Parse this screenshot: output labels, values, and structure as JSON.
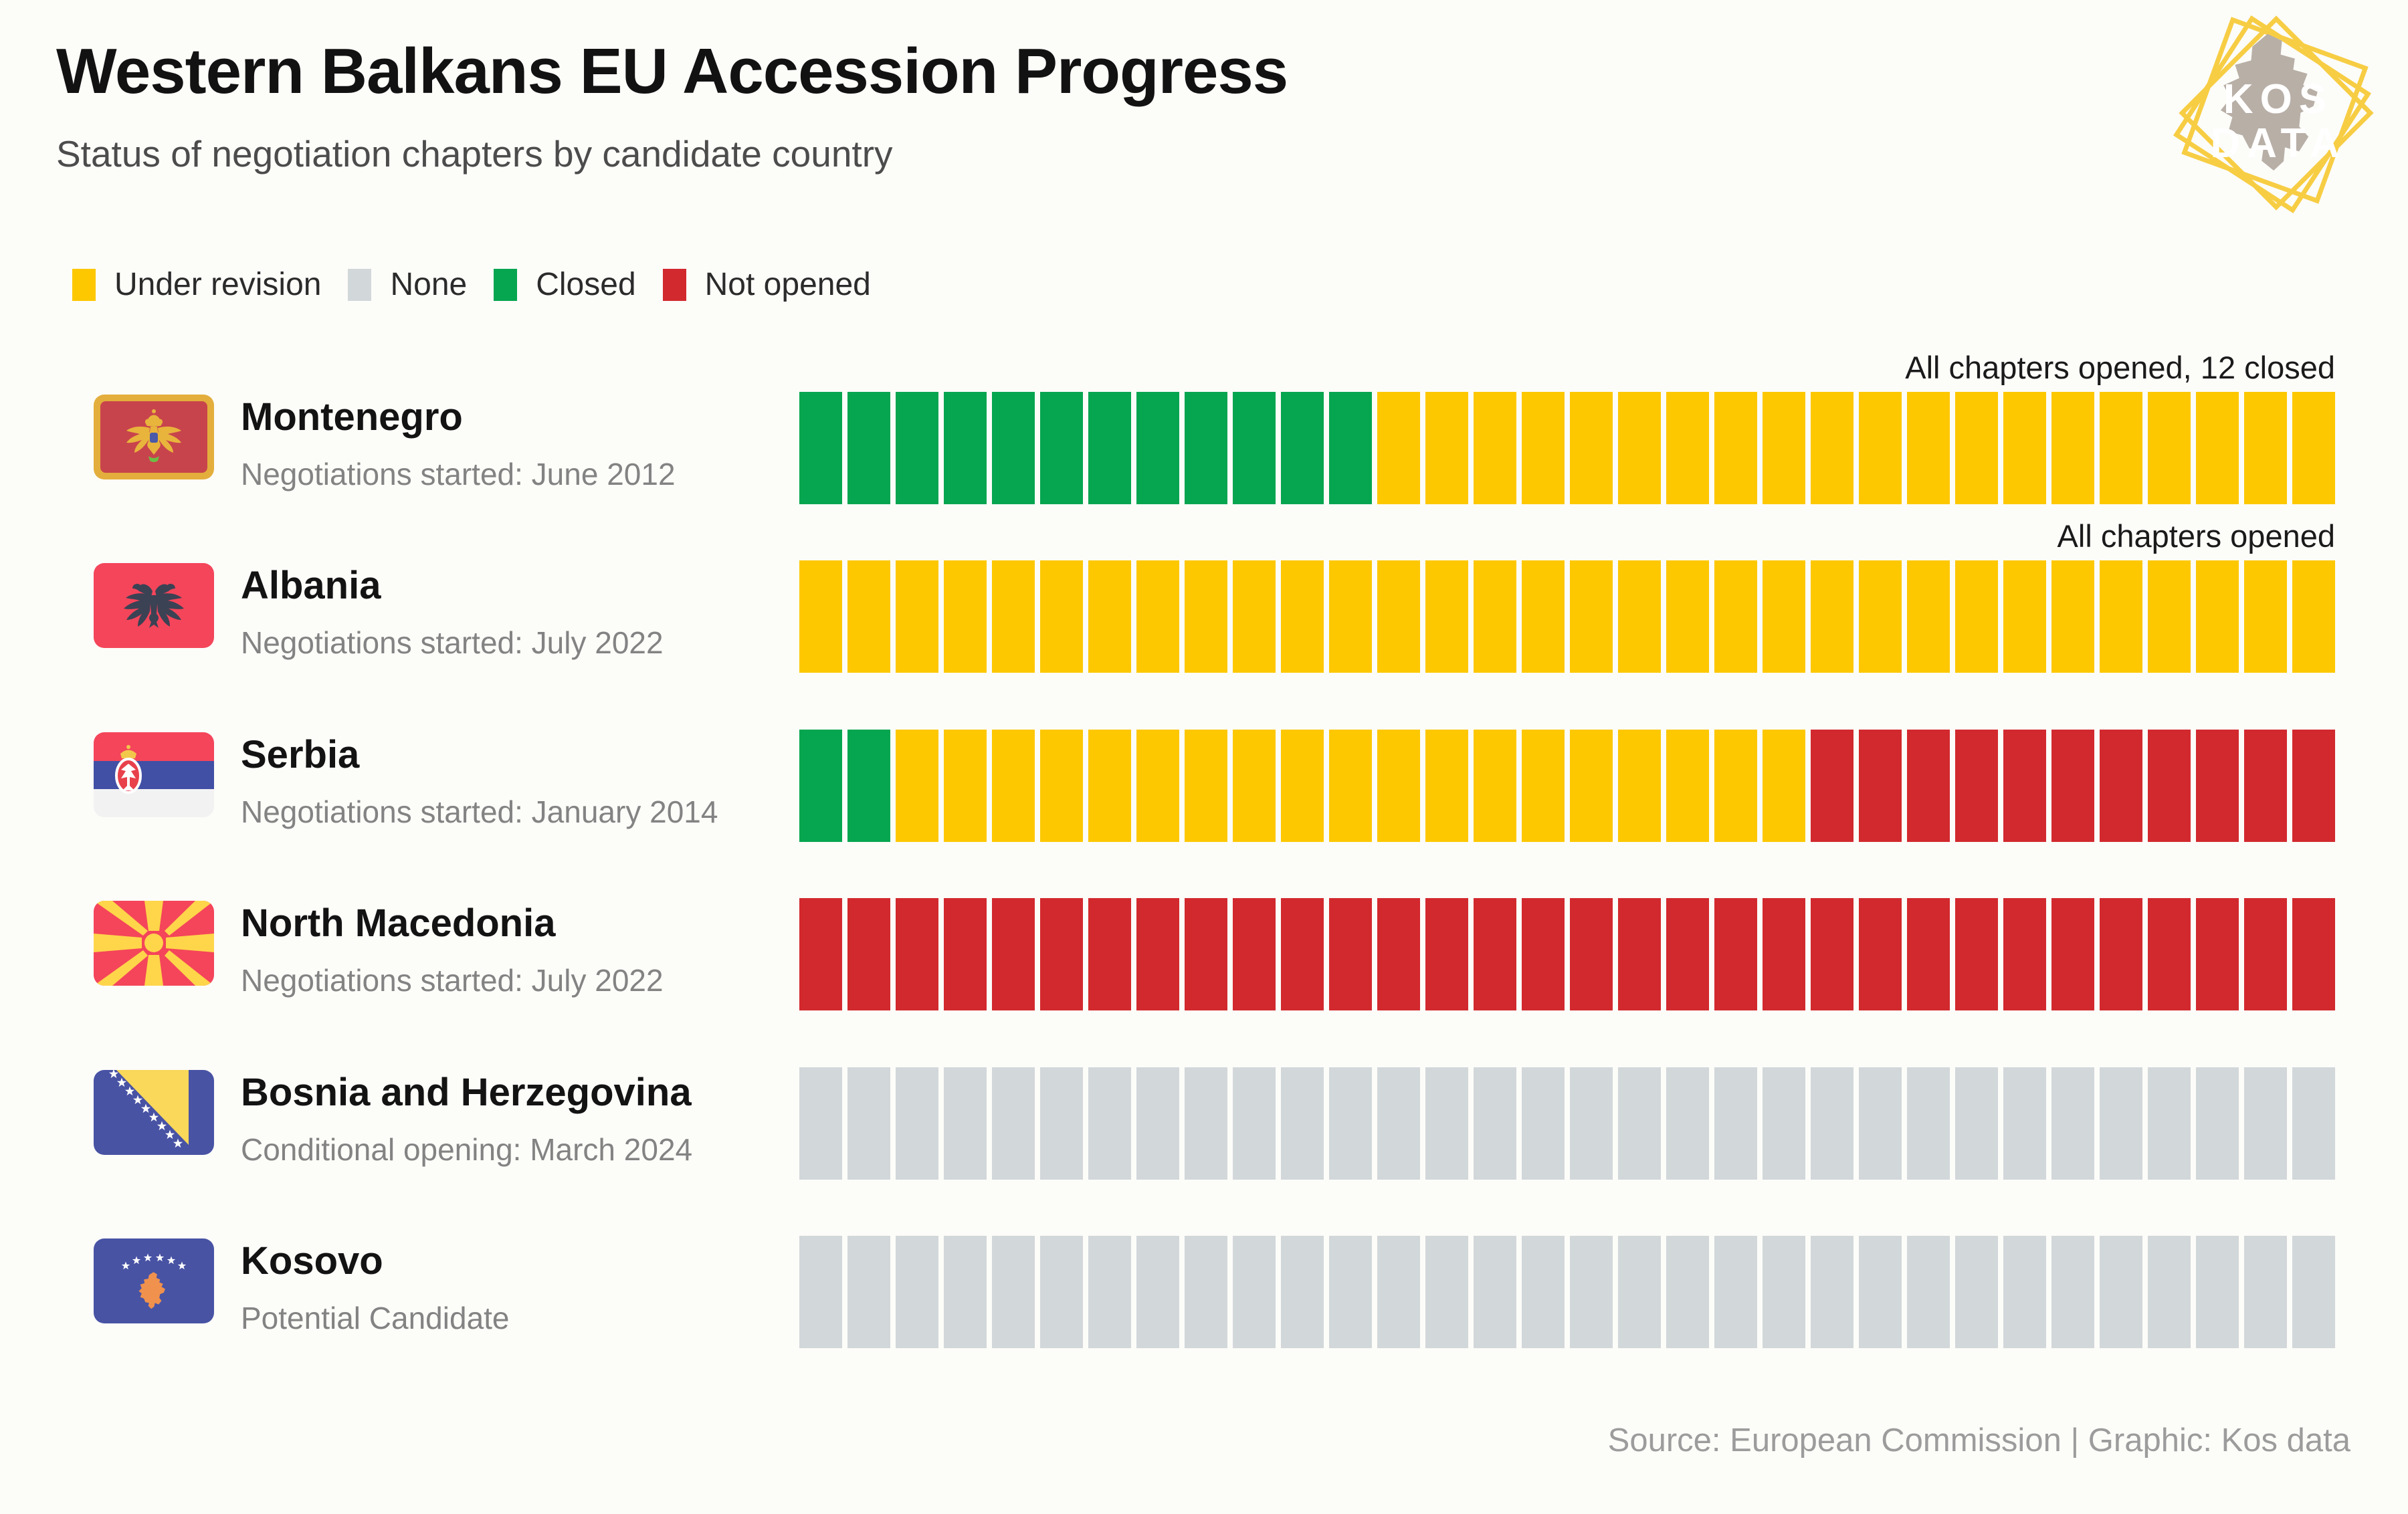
{
  "header": {
    "title": "Western Balkans EU Accession Progress",
    "subtitle": "Status of negotiation chapters by candidate country"
  },
  "logo": {
    "line1": "KOS",
    "line2": "DATA",
    "accent_color": "#f7cd44",
    "map_color": "#b8afa7"
  },
  "legend": {
    "items": [
      {
        "key": "under_revision",
        "label": "Under revision",
        "color": "#fdc800"
      },
      {
        "key": "none",
        "label": "None",
        "color": "#d2d7da"
      },
      {
        "key": "closed",
        "label": "Closed",
        "color": "#06a550"
      },
      {
        "key": "not_opened",
        "label": "Not opened",
        "color": "#d2292e"
      }
    ]
  },
  "chart_data": {
    "type": "waffle-bar",
    "unit": "negotiation chapters",
    "chapters_per_row": 32,
    "status_colors": {
      "under_revision": "#fdc800",
      "none": "#d2d7da",
      "closed": "#06a550",
      "not_opened": "#d2292e"
    },
    "countries": [
      {
        "name": "Montenegro",
        "flag": "montenegro",
        "note": "Negotiations started: June 2012",
        "annotation": "All chapters opened, 12 closed",
        "segments": [
          {
            "status": "closed",
            "count": 12
          },
          {
            "status": "under_revision",
            "count": 20
          }
        ]
      },
      {
        "name": "Albania",
        "flag": "albania",
        "note": "Negotiations started: July 2022",
        "annotation": "All chapters opened",
        "segments": [
          {
            "status": "under_revision",
            "count": 32
          }
        ]
      },
      {
        "name": "Serbia",
        "flag": "serbia",
        "note": "Negotiations started: January 2014",
        "annotation": "",
        "segments": [
          {
            "status": "closed",
            "count": 2
          },
          {
            "status": "under_revision",
            "count": 19
          },
          {
            "status": "not_opened",
            "count": 11
          }
        ]
      },
      {
        "name": "North Macedonia",
        "flag": "north-macedonia",
        "note": "Negotiations started: July 2022",
        "annotation": "",
        "segments": [
          {
            "status": "not_opened",
            "count": 32
          }
        ]
      },
      {
        "name": "Bosnia and Herzegovina",
        "flag": "bosnia",
        "note": "Conditional opening: March 2024",
        "annotation": "",
        "segments": [
          {
            "status": "none",
            "count": 32
          }
        ]
      },
      {
        "name": "Kosovo",
        "flag": "kosovo",
        "note": "Potential Candidate",
        "annotation": "",
        "segments": [
          {
            "status": "none",
            "count": 32
          }
        ]
      }
    ]
  },
  "footer": {
    "source": "Source: European Commission | Graphic: Kos data"
  }
}
